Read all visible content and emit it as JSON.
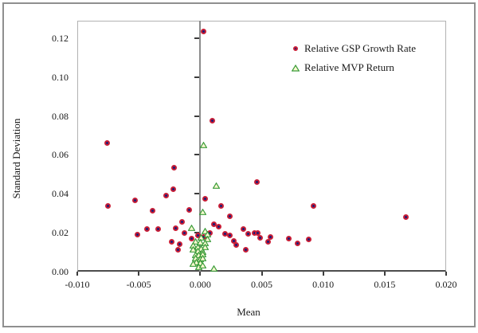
{
  "figure_title": "",
  "axes": {
    "x_title": "Mean",
    "y_title": "Standard Deviation"
  },
  "colors": {
    "gsp_marker_ring": "#c81e37",
    "gsp_marker_core": "#1c1c78",
    "mvp_marker_edge": "#3a9c3a",
    "mvp_marker_fill": "#fcfad2",
    "axis_line": "#4d4d4d",
    "zero_line": "#8c8c8c",
    "plot_border": "#b2b2b2",
    "figure_border": "#8f8f8f",
    "text": "#1a1a1a"
  },
  "chart_data": {
    "type": "scatter",
    "title": "",
    "xlabel": "Mean",
    "ylabel": "Standard Deviation",
    "xlim": [
      -0.01,
      0.02
    ],
    "ylim": [
      0,
      0.129
    ],
    "grid": false,
    "legend_position": "top-right-inside",
    "x_ticks": [
      -0.01,
      -0.005,
      0.0,
      0.005,
      0.01,
      0.015,
      0.02
    ],
    "x_tick_labels": [
      "-0.010",
      "-0.005",
      "0.000",
      "0.005",
      "0.010",
      "0.015",
      "0.020"
    ],
    "y_ticks": [
      0,
      0.02,
      0.04,
      0.06,
      0.08,
      0.1,
      0.12
    ],
    "y_tick_labels": [
      "0.00",
      "0.02",
      "0.04",
      "0.06",
      "0.08",
      "0.10",
      "0.12"
    ],
    "series": [
      {
        "name": "Relative GSP Growth Rate",
        "marker": "filled-circle",
        "edge_color": "#c81e37",
        "fill_color": "#1c1c78",
        "points": [
          [
            0.0003,
            0.1235
          ],
          [
            0.001,
            0.0776
          ],
          [
            -0.0076,
            0.0662
          ],
          [
            -0.0021,
            0.0535
          ],
          [
            -0.0022,
            0.0425
          ],
          [
            -0.0028,
            0.0392
          ],
          [
            -0.0053,
            0.0368
          ],
          [
            -0.0075,
            0.0339
          ],
          [
            -0.0039,
            0.0315
          ],
          [
            -0.0009,
            0.0319
          ],
          [
            0.0004,
            0.0376
          ],
          [
            0.0046,
            0.0462
          ],
          [
            0.0017,
            0.0339
          ],
          [
            0.0092,
            0.0339
          ],
          [
            0.0167,
            0.0282
          ],
          [
            0.0024,
            0.0286
          ],
          [
            0.0011,
            0.0245
          ],
          [
            0.0015,
            0.0233
          ],
          [
            -0.0015,
            0.0257
          ],
          [
            -0.002,
            0.0225
          ],
          [
            -0.0043,
            0.0221
          ],
          [
            -0.0034,
            0.0221
          ],
          [
            -0.0051,
            0.0192
          ],
          [
            -0.0013,
            0.02
          ],
          [
            -0.0023,
            0.0155
          ],
          [
            -0.0017,
            0.0143
          ],
          [
            -0.0018,
            0.0114
          ],
          [
            -0.0007,
            0.017
          ],
          [
            -0.0002,
            0.0188
          ],
          [
            0.0003,
            0.018
          ],
          [
            0.0008,
            0.0198
          ],
          [
            0.002,
            0.0196
          ],
          [
            0.0024,
            0.0188
          ],
          [
            0.0027,
            0.0159
          ],
          [
            0.0029,
            0.0139
          ],
          [
            0.0035,
            0.0221
          ],
          [
            0.0039,
            0.0196
          ],
          [
            0.0044,
            0.02
          ],
          [
            0.0047,
            0.0198
          ],
          [
            0.0049,
            0.0176
          ],
          [
            0.0055,
            0.0155
          ],
          [
            0.0057,
            0.018
          ],
          [
            0.0037,
            0.0114
          ],
          [
            0.0072,
            0.0168
          ],
          [
            0.0079,
            0.0147
          ],
          [
            0.0088,
            0.0164
          ]
        ]
      },
      {
        "name": "Relative MVP Return",
        "marker": "open-triangle",
        "edge_color": "#3a9c3a",
        "fill_color": "#fcfad2",
        "points": [
          [
            0.0003,
            0.0652
          ],
          [
            0.0013,
            0.0441
          ],
          [
            0.0002,
            0.0307
          ],
          [
            -0.0007,
            0.0225
          ],
          [
            0.0004,
            0.0209
          ],
          [
            0.0006,
            0.0192
          ],
          [
            0.0001,
            0.0176
          ],
          [
            0.0006,
            0.0168
          ],
          [
            -0.0004,
            0.0155
          ],
          [
            0.0,
            0.0151
          ],
          [
            0.0004,
            0.0147
          ],
          [
            -0.0006,
            0.0135
          ],
          [
            -0.0002,
            0.0127
          ],
          [
            0.0004,
            0.0127
          ],
          [
            0.0001,
            0.0119
          ],
          [
            -0.0006,
            0.0114
          ],
          [
            -0.0002,
            0.0106
          ],
          [
            0.0002,
            0.0102
          ],
          [
            -0.0004,
            0.0086
          ],
          [
            -0.0001,
            0.0086
          ],
          [
            0.0002,
            0.009
          ],
          [
            -0.0004,
            0.007
          ],
          [
            0.0,
            0.0065
          ],
          [
            0.0002,
            0.007
          ],
          [
            -0.0003,
            0.0049
          ],
          [
            0.0,
            0.0045
          ],
          [
            -0.0006,
            0.0041
          ],
          [
            -0.0001,
            0.0025
          ],
          [
            0.0002,
            0.0033
          ],
          [
            0.0011,
            0.0016
          ]
        ]
      }
    ]
  }
}
